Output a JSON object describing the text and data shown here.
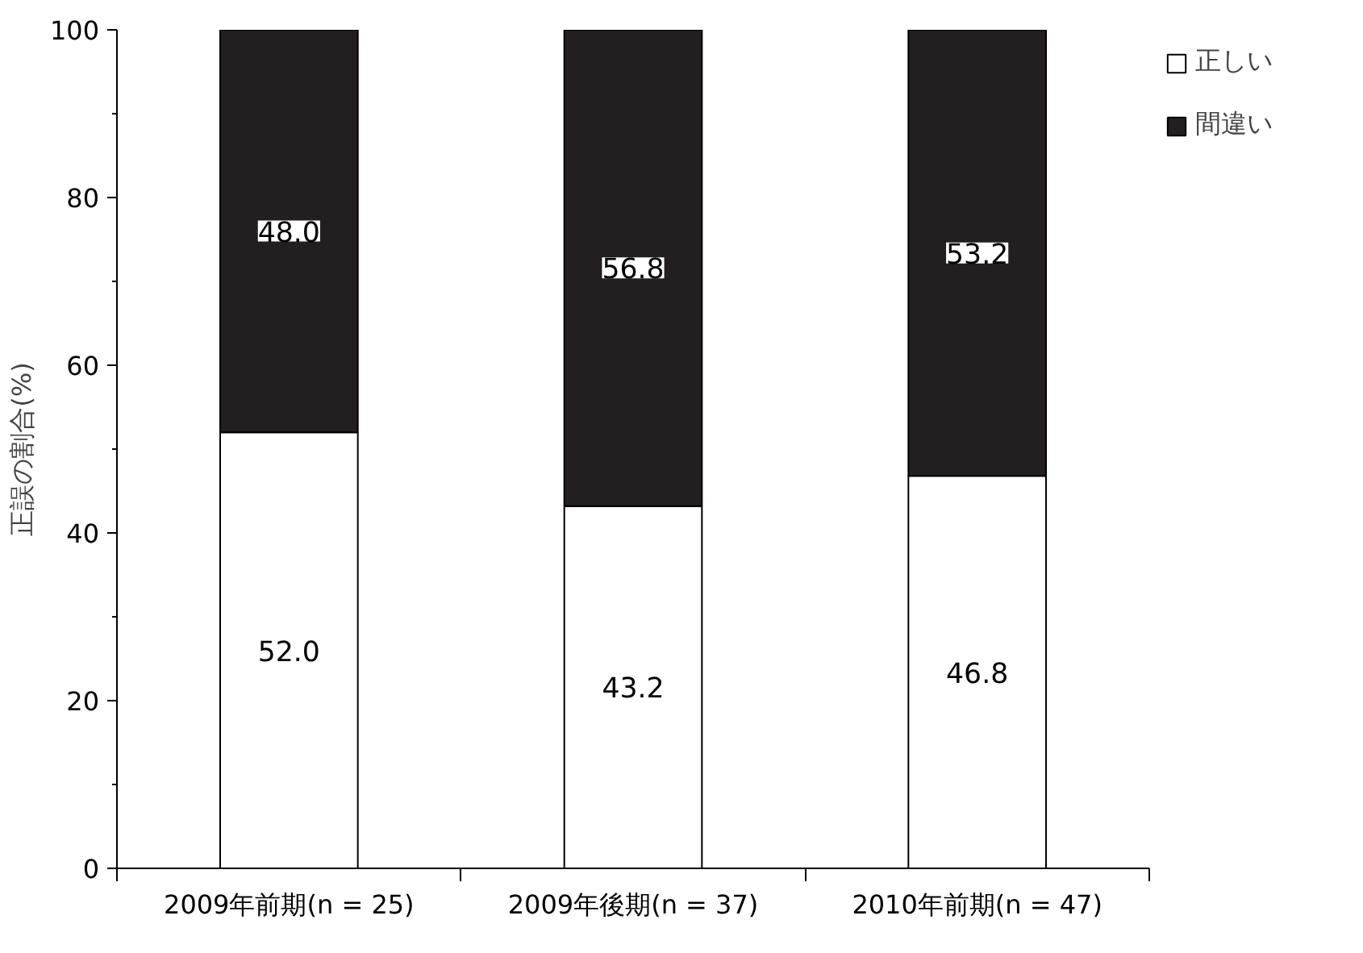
{
  "chart_data": {
    "type": "bar",
    "stacked": true,
    "ylabel": "正誤の割合(%)",
    "categories": [
      "2009年前期(n = 25)",
      "2009年後期(n = 37)",
      "2010年前期(n = 47)"
    ],
    "series": [
      {
        "name": "正しい",
        "color": "#ffffff",
        "values": [
          52.0,
          43.2,
          46.8
        ],
        "value_labels": [
          "52.0",
          "43.2",
          "46.8"
        ]
      },
      {
        "name": "間違い",
        "color": "#231f20",
        "values": [
          48.0,
          56.8,
          53.2
        ],
        "value_labels": [
          "48.0",
          "56.8",
          "53.2"
        ]
      }
    ],
    "ylim": [
      0,
      100
    ],
    "yticks": [
      0,
      {
        "value": 10,
        "label": null
      },
      20,
      {
        "value": 30,
        "label": null
      },
      40,
      {
        "value": 50,
        "label": null
      },
      60,
      {
        "value": 70,
        "label": null
      },
      80,
      {
        "value": 90,
        "label": null
      },
      100
    ],
    "grid": false,
    "legend": "top right"
  }
}
